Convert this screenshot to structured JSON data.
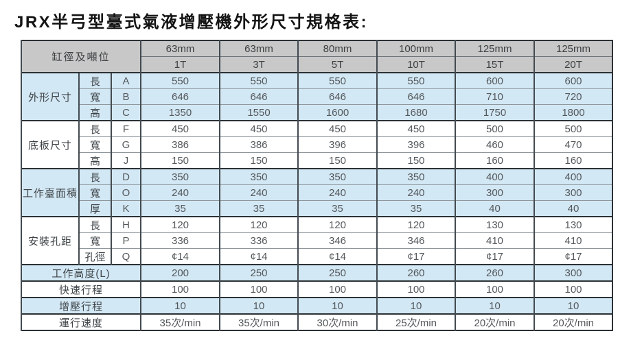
{
  "title": "JRX半弓型臺式氣液增壓機外形尺寸規格表:",
  "colors": {
    "header_bg": "#c8c8c8",
    "row_blue": "#d3e8f5",
    "row_white": "#ffffff",
    "border_dark": "#2b3135",
    "border_light": "#8f979c",
    "text": "#54585b"
  },
  "table": {
    "corner_label": "缸徑及噸位",
    "columns": [
      {
        "bore": "63mm",
        "tonnage": "1T"
      },
      {
        "bore": "63mm",
        "tonnage": "3T"
      },
      {
        "bore": "80mm",
        "tonnage": "5T"
      },
      {
        "bore": "100mm",
        "tonnage": "10T"
      },
      {
        "bore": "125mm",
        "tonnage": "15T"
      },
      {
        "bore": "125mm",
        "tonnage": "20T"
      }
    ],
    "sections": [
      {
        "name": "外形尺寸",
        "shade": "blue",
        "rows": [
          {
            "dim": "長",
            "letter": "A",
            "values": [
              "550",
              "550",
              "550",
              "550",
              "600",
              "600"
            ]
          },
          {
            "dim": "寬",
            "letter": "B",
            "values": [
              "646",
              "646",
              "646",
              "646",
              "710",
              "720"
            ]
          },
          {
            "dim": "高",
            "letter": "C",
            "values": [
              "1350",
              "1550",
              "1600",
              "1680",
              "1750",
              "1800"
            ]
          }
        ]
      },
      {
        "name": "底板尺寸",
        "shade": "white",
        "rows": [
          {
            "dim": "長",
            "letter": "F",
            "values": [
              "450",
              "450",
              "450",
              "450",
              "500",
              "500"
            ]
          },
          {
            "dim": "寬",
            "letter": "G",
            "values": [
              "386",
              "386",
              "396",
              "396",
              "460",
              "470"
            ]
          },
          {
            "dim": "高",
            "letter": "J",
            "values": [
              "150",
              "150",
              "150",
              "150",
              "160",
              "160"
            ]
          }
        ]
      },
      {
        "name": "工作臺面積",
        "shade": "blue",
        "rows": [
          {
            "dim": "長",
            "letter": "D",
            "values": [
              "350",
              "350",
              "350",
              "350",
              "400",
              "400"
            ]
          },
          {
            "dim": "寬",
            "letter": "O",
            "values": [
              "240",
              "240",
              "240",
              "240",
              "300",
              "300"
            ]
          },
          {
            "dim": "厚",
            "letter": "K",
            "values": [
              "35",
              "35",
              "35",
              "35",
              "40",
              "40"
            ]
          }
        ]
      },
      {
        "name": "安裝孔距",
        "shade": "white",
        "rows": [
          {
            "dim": "長",
            "letter": "H",
            "values": [
              "120",
              "120",
              "120",
              "120",
              "130",
              "130"
            ]
          },
          {
            "dim": "寬",
            "letter": "P",
            "values": [
              "336",
              "336",
              "346",
              "346",
              "410",
              "410"
            ]
          },
          {
            "dim": "孔徑",
            "letter": "Q",
            "values": [
              "¢14",
              "¢14",
              "¢14",
              "¢17",
              "¢17",
              "¢17"
            ]
          }
        ]
      }
    ],
    "summary_rows": [
      {
        "label": "工作高度(L)",
        "shade": "blue",
        "values": [
          "200",
          "250",
          "250",
          "260",
          "260",
          "300"
        ]
      },
      {
        "label": "快速行程",
        "shade": "white",
        "values": [
          "100",
          "100",
          "100",
          "100",
          "100",
          "100"
        ]
      },
      {
        "label": "增壓行程",
        "shade": "blue",
        "values": [
          "10",
          "10",
          "10",
          "10",
          "10",
          "10"
        ]
      },
      {
        "label": "運行速度",
        "shade": "white",
        "values": [
          "35次/min",
          "35次/min",
          "30次/min",
          "25次/min",
          "20次/min",
          "20次/min"
        ]
      }
    ]
  }
}
